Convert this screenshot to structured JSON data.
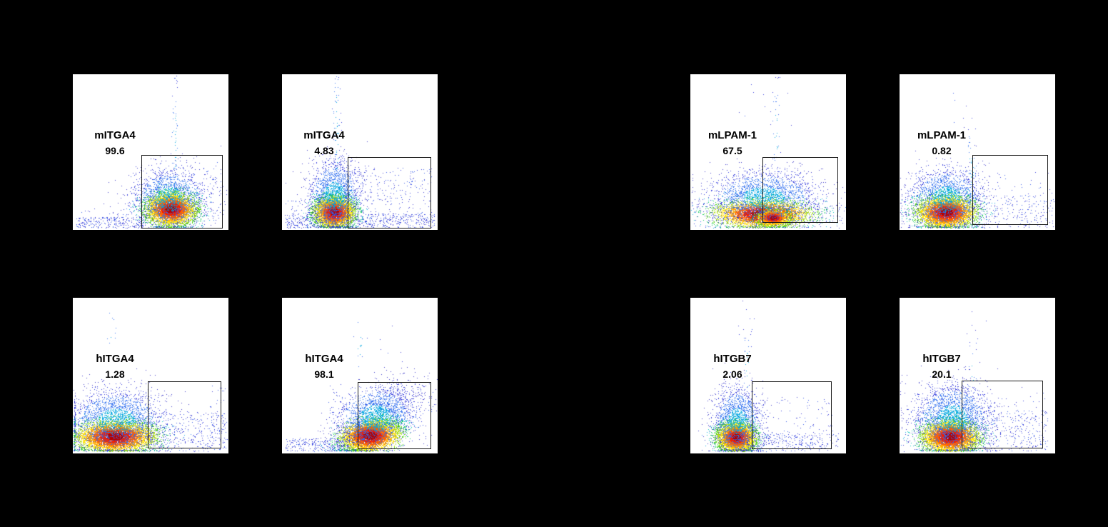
{
  "figure": {
    "background_color": "#000000",
    "panel_background": "#ffffff",
    "panel_border_color": "#000000",
    "gate_line_color": "#1a1a1a",
    "label_color": "#000000"
  },
  "palette": {
    "hot": [
      [
        0.5,
        "#b40000"
      ],
      [
        0.85,
        "#f01e00"
      ],
      [
        1.2,
        "#ff5f00"
      ],
      [
        1.55,
        "#ffa500"
      ],
      [
        1.9,
        "#ffe100"
      ],
      [
        2.25,
        "#aade00"
      ],
      [
        2.6,
        "#3fcf00"
      ],
      [
        3.0,
        "#00c853"
      ],
      [
        3.4,
        "#00c8b9"
      ],
      [
        3.8,
        "#00a5e1"
      ],
      [
        4.4,
        "#2d7bf0"
      ],
      [
        99,
        "#2a32da"
      ]
    ],
    "cool": [
      [
        0.8,
        "#00a5e1"
      ],
      [
        1.6,
        "#2d6ef0"
      ],
      [
        2.4,
        "#2a32da"
      ],
      [
        99,
        "#3230c8"
      ]
    ],
    "sparse_blues": [
      "#2a32da",
      "#2d55ea",
      "#3b38d2"
    ]
  },
  "chart_data": {
    "type": "scatter",
    "subtype": "flow-cytometry-pseudocolor-density",
    "rows": 2,
    "cols": 4,
    "axes": {
      "xlabel": "",
      "ylabel": "",
      "tick_labels_visible": false,
      "grid": false
    },
    "panels": [
      {
        "marker": "mITGA4",
        "value": "99.6",
        "gate": {
          "x0": 0.44,
          "y0": 0.52,
          "x1": 0.965,
          "y1": 0.99
        },
        "components": [
          {
            "type": "gauss",
            "palette": "hot",
            "cx": 0.63,
            "cy": 0.865,
            "sx": 0.075,
            "sy": 0.05,
            "n": 6500
          },
          {
            "type": "gauss",
            "palette": "cool",
            "cx": 0.62,
            "cy": 0.8,
            "sx": 0.115,
            "sy": 0.095,
            "n": 1900
          },
          {
            "type": "gauss",
            "palette": "cool",
            "cx": 0.655,
            "cy": 0.45,
            "sx": 0.013,
            "sy": 0.28,
            "n": 60
          },
          {
            "type": "uniform",
            "x0": 0.02,
            "x1": 0.46,
            "y0": 0.915,
            "y1": 0.985,
            "n": 230
          },
          {
            "type": "uniform",
            "x0": 0.02,
            "x1": 0.98,
            "y0": 0.86,
            "y1": 0.985,
            "n": 90
          },
          {
            "type": "uniform",
            "x0": 0.36,
            "x1": 0.97,
            "y0": 0.56,
            "y1": 0.9,
            "n": 160
          }
        ]
      },
      {
        "marker": "mITGA4",
        "value": "4.83",
        "gate": {
          "x0": 0.42,
          "y0": 0.53,
          "x1": 0.96,
          "y1": 0.99
        },
        "components": [
          {
            "type": "gauss",
            "palette": "hot",
            "cx": 0.335,
            "cy": 0.885,
            "sx": 0.06,
            "sy": 0.047,
            "n": 6200
          },
          {
            "type": "gauss",
            "palette": "cool",
            "cx": 0.335,
            "cy": 0.78,
            "sx": 0.08,
            "sy": 0.115,
            "n": 2100
          },
          {
            "type": "gauss",
            "palette": "cool",
            "cx": 0.35,
            "cy": 0.38,
            "sx": 0.013,
            "sy": 0.3,
            "n": 80
          },
          {
            "type": "uniform",
            "x0": 0.02,
            "x1": 0.98,
            "y0": 0.895,
            "y1": 0.985,
            "n": 520
          },
          {
            "type": "uniform",
            "x0": 0.4,
            "x1": 0.96,
            "y0": 0.6,
            "y1": 0.95,
            "n": 260
          },
          {
            "type": "uniform",
            "x0": 0.02,
            "x1": 0.35,
            "y0": 0.8,
            "y1": 0.985,
            "n": 120
          }
        ]
      },
      {
        "marker": "mLPAM-1",
        "value": "67.5",
        "gate": {
          "x0": 0.465,
          "y0": 0.53,
          "x1": 0.95,
          "y1": 0.955
        },
        "components": [
          {
            "type": "gauss",
            "palette": "hot",
            "cx": 0.46,
            "cy": 0.895,
            "sx": 0.145,
            "sy": 0.042,
            "n": 5200
          },
          {
            "type": "gauss",
            "palette": "hot",
            "cx": 0.53,
            "cy": 0.92,
            "sx": 0.05,
            "sy": 0.026,
            "n": 2400
          },
          {
            "type": "gauss",
            "palette": "cool",
            "cx": 0.47,
            "cy": 0.79,
            "sx": 0.17,
            "sy": 0.085,
            "n": 2600
          },
          {
            "type": "gauss",
            "palette": "cool",
            "cx": 0.55,
            "cy": 0.42,
            "sx": 0.015,
            "sy": 0.24,
            "n": 45
          },
          {
            "type": "uniform",
            "x0": 0.02,
            "x1": 0.98,
            "y0": 0.83,
            "y1": 0.985,
            "n": 260
          },
          {
            "type": "uniform",
            "x0": 0.3,
            "x1": 0.72,
            "y0": 0.05,
            "y1": 0.35,
            "n": 10
          }
        ]
      },
      {
        "marker": "mLPAM-1",
        "value": "0.82",
        "gate": {
          "x0": 0.47,
          "y0": 0.52,
          "x1": 0.955,
          "y1": 0.97
        },
        "components": [
          {
            "type": "gauss",
            "palette": "hot",
            "cx": 0.3,
            "cy": 0.885,
            "sx": 0.088,
            "sy": 0.048,
            "n": 6500
          },
          {
            "type": "gauss",
            "palette": "cool",
            "cx": 0.3,
            "cy": 0.8,
            "sx": 0.115,
            "sy": 0.1,
            "n": 2100
          },
          {
            "type": "gauss",
            "palette": "cool",
            "cx": 0.46,
            "cy": 0.6,
            "sx": 0.02,
            "sy": 0.17,
            "n": 55
          },
          {
            "type": "uniform",
            "x0": 0.45,
            "x1": 0.99,
            "y0": 0.78,
            "y1": 0.985,
            "n": 210
          },
          {
            "type": "uniform",
            "x0": 0.02,
            "x1": 0.99,
            "y0": 0.62,
            "y1": 0.985,
            "n": 140
          },
          {
            "type": "uniform",
            "x0": 0.28,
            "x1": 0.45,
            "y0": 0.1,
            "y1": 0.32,
            "n": 5
          }
        ]
      },
      {
        "marker": "hITGA4",
        "value": "1.28",
        "gate": {
          "x0": 0.48,
          "y0": 0.535,
          "x1": 0.955,
          "y1": 0.97
        },
        "components": [
          {
            "type": "gauss",
            "palette": "hot",
            "cx": 0.27,
            "cy": 0.89,
            "sx": 0.12,
            "sy": 0.048,
            "n": 7000
          },
          {
            "type": "gauss",
            "palette": "cool",
            "cx": 0.28,
            "cy": 0.79,
            "sx": 0.15,
            "sy": 0.1,
            "n": 2600
          },
          {
            "type": "uniform",
            "x0": 0.45,
            "x1": 0.99,
            "y0": 0.73,
            "y1": 0.985,
            "n": 330
          },
          {
            "type": "uniform",
            "x0": 0.88,
            "x1": 0.995,
            "y0": 0.55,
            "y1": 0.95,
            "n": 40
          },
          {
            "type": "gauss",
            "palette": "cool",
            "cx": 0.245,
            "cy": 0.2,
            "sx": 0.03,
            "sy": 0.07,
            "n": 9
          },
          {
            "type": "uniform",
            "x0": 0.02,
            "x1": 0.99,
            "y0": 0.8,
            "y1": 0.985,
            "n": 120
          }
        ]
      },
      {
        "marker": "hITGA4",
        "value": "98.1",
        "gate": {
          "x0": 0.485,
          "y0": 0.54,
          "x1": 0.96,
          "y1": 0.973
        },
        "components": [
          {
            "type": "gauss",
            "palette": "hot",
            "cx": 0.565,
            "cy": 0.885,
            "sx": 0.09,
            "sy": 0.05,
            "n": 6200,
            "rho": -0.35
          },
          {
            "type": "gauss",
            "palette": "cool",
            "cx": 0.6,
            "cy": 0.77,
            "sx": 0.125,
            "sy": 0.105,
            "n": 2600,
            "rho": -0.45
          },
          {
            "type": "uniform",
            "x0": 0.02,
            "x1": 0.44,
            "y0": 0.9,
            "y1": 0.985,
            "n": 250
          },
          {
            "type": "uniform",
            "x0": 0.3,
            "x1": 0.97,
            "y0": 0.55,
            "y1": 0.95,
            "n": 240
          },
          {
            "type": "uniform",
            "x0": 0.4,
            "x1": 0.8,
            "y0": 0.12,
            "y1": 0.42,
            "n": 8
          },
          {
            "type": "gauss",
            "palette": "cool",
            "cx": 0.5,
            "cy": 0.3,
            "sx": 0.02,
            "sy": 0.12,
            "n": 12
          }
        ]
      },
      {
        "marker": "hITGB7",
        "value": "2.06",
        "gate": {
          "x0": 0.395,
          "y0": 0.535,
          "x1": 0.91,
          "y1": 0.973
        },
        "components": [
          {
            "type": "gauss",
            "palette": "hot",
            "cx": 0.295,
            "cy": 0.895,
            "sx": 0.057,
            "sy": 0.045,
            "n": 6200
          },
          {
            "type": "gauss",
            "palette": "cool",
            "cx": 0.3,
            "cy": 0.795,
            "sx": 0.075,
            "sy": 0.11,
            "n": 1900
          },
          {
            "type": "uniform",
            "x0": 0.33,
            "x1": 0.95,
            "y0": 0.87,
            "y1": 0.985,
            "n": 300
          },
          {
            "type": "uniform",
            "x0": 0.38,
            "x1": 0.92,
            "y0": 0.63,
            "y1": 0.95,
            "n": 130
          },
          {
            "type": "gauss",
            "palette": "cool",
            "cx": 0.36,
            "cy": 0.45,
            "sx": 0.015,
            "sy": 0.18,
            "n": 30
          },
          {
            "type": "uniform",
            "x0": 0.25,
            "x1": 0.42,
            "y0": 0.1,
            "y1": 0.33,
            "n": 7
          }
        ]
      },
      {
        "marker": "hITGB7",
        "value": "20.1",
        "gate": {
          "x0": 0.4,
          "y0": 0.53,
          "x1": 0.92,
          "y1": 0.968
        },
        "components": [
          {
            "type": "gauss",
            "palette": "hot",
            "cx": 0.325,
            "cy": 0.89,
            "sx": 0.085,
            "sy": 0.05,
            "n": 6500
          },
          {
            "type": "gauss",
            "palette": "cool",
            "cx": 0.34,
            "cy": 0.775,
            "sx": 0.12,
            "sy": 0.11,
            "n": 2600
          },
          {
            "type": "uniform",
            "x0": 0.44,
            "x1": 0.95,
            "y0": 0.72,
            "y1": 0.985,
            "n": 300
          },
          {
            "type": "uniform",
            "x0": 0.05,
            "x1": 0.95,
            "y0": 0.6,
            "y1": 0.985,
            "n": 150
          },
          {
            "type": "uniform",
            "x0": 0.35,
            "x1": 0.65,
            "y0": 0.08,
            "y1": 0.35,
            "n": 6
          },
          {
            "type": "gauss",
            "palette": "cool",
            "cx": 0.46,
            "cy": 0.5,
            "sx": 0.02,
            "sy": 0.14,
            "n": 20
          }
        ]
      }
    ]
  }
}
